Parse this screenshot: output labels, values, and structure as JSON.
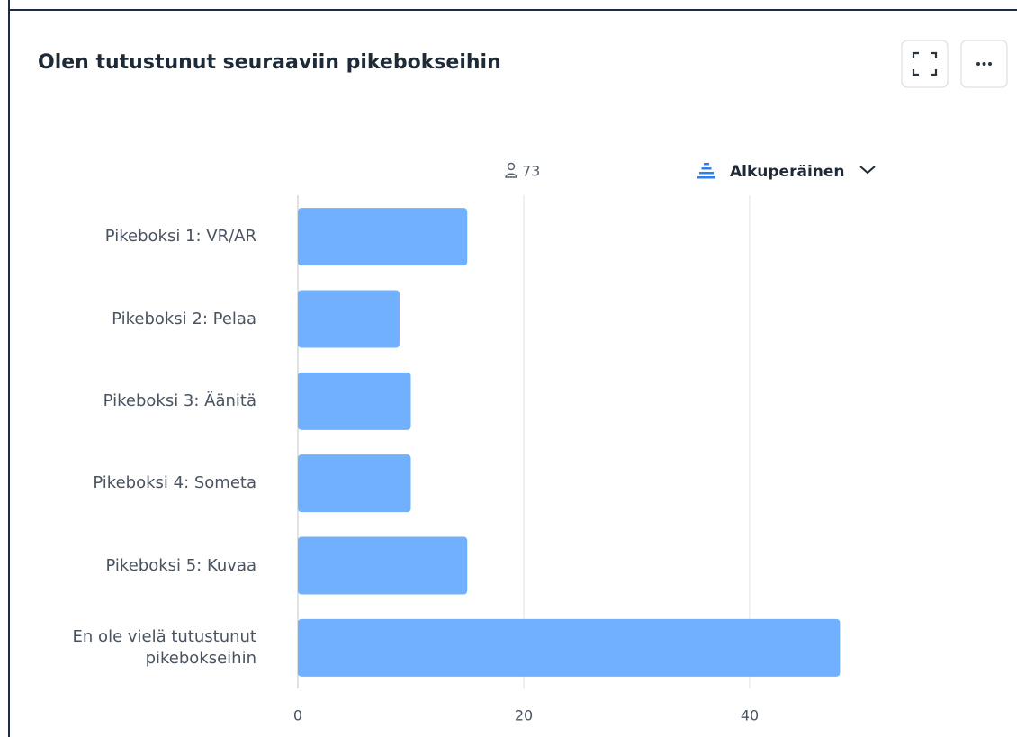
{
  "chart_data": {
    "type": "hbar",
    "title": "Olen tutustunut seuraaviin pikebokseihin",
    "respondents": 73,
    "sort_label": "Alkuperäinen",
    "categories": [
      "Pikeboksi 1: VR/AR",
      "Pikeboksi 2: Pelaa",
      "Pikeboksi 3: Äänitä",
      "Pikeboksi 4: Someta",
      "Pikeboksi 5: Kuvaa",
      "En ole vielä tutustunut pikebokseihin"
    ],
    "values": [
      15,
      9,
      10,
      10,
      15,
      48
    ],
    "color": "#70b0fd",
    "xlim": [
      0,
      60
    ],
    "xticks": [
      0,
      20,
      40
    ],
    "grid": true
  }
}
